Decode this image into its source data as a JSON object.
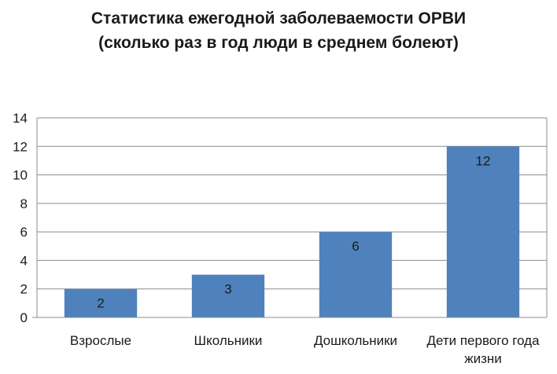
{
  "chart_data": {
    "type": "bar",
    "title_lines": [
      "Статистика ежегодной заболеваемости ОРВИ",
      "(сколько раз в год люди в среднем болеют)"
    ],
    "categories": [
      [
        "Взрослые"
      ],
      [
        "Школьники"
      ],
      [
        "Дошкольники"
      ],
      [
        "Дети первого года",
        "жизни"
      ]
    ],
    "values": [
      2,
      3,
      6,
      12
    ],
    "data_labels": [
      "2",
      "3",
      "6",
      "12"
    ],
    "ylim": [
      0,
      14
    ],
    "yticks": [
      0,
      2,
      4,
      6,
      8,
      10,
      12,
      14
    ],
    "grid": true,
    "legend": "none",
    "bar_color": "#4f81bd"
  }
}
